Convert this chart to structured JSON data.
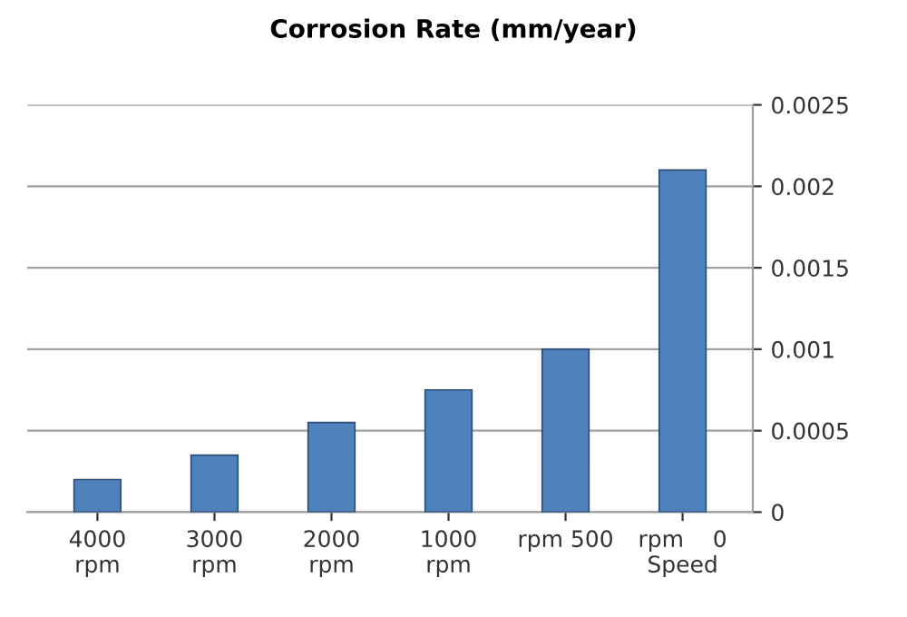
{
  "chart_data": {
    "type": "bar",
    "title": "Corrosion Rate (mm/year)",
    "categories": [
      "4000\nrpm",
      "3000\nrpm",
      "2000\nrpm",
      "1000\nrpm",
      "rpm 500",
      "rpm    0\nSpeed"
    ],
    "values": [
      0.0002,
      0.00035,
      0.00055,
      0.00075,
      0.001,
      0.0021
    ],
    "color": "#4f81bd",
    "ylim": [
      0,
      0.0025
    ],
    "yticks": [
      0,
      0.0005,
      0.001,
      0.0015,
      0.002,
      0.0025
    ],
    "grid": "y",
    "legend": false
  }
}
